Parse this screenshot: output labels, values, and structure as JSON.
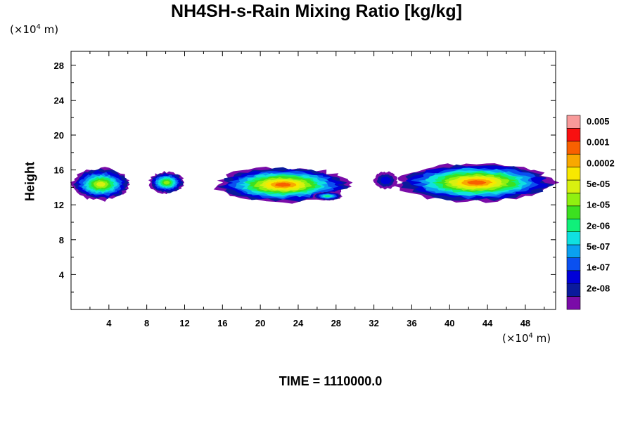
{
  "title": "NH4SH-s-Rain Mixing Ratio [kg/kg]",
  "y_unit": {
    "prefix": "(×10",
    "exp": "4",
    "suffix": " m)"
  },
  "x_unit": {
    "prefix": "(×10",
    "exp": "4",
    "suffix": " m)"
  },
  "time_label": "TIME = 1110000.0",
  "chart_data": {
    "type": "heatmap",
    "title": "NH4SH-s-Rain Mixing Ratio [kg/kg]",
    "xlabel": "",
    "ylabel": "Height",
    "xlim": [
      0,
      51.2
    ],
    "ylim": [
      0,
      29.6
    ],
    "xticks": [
      4,
      8,
      12,
      16,
      20,
      24,
      28,
      32,
      36,
      40,
      44,
      48
    ],
    "yticks": [
      4,
      8,
      12,
      16,
      20,
      24,
      28
    ],
    "levels": [
      "2e-08",
      "1e-07",
      "5e-07",
      "2e-06",
      "1e-05",
      "5e-05",
      "0.0002",
      "0.001",
      "0.005"
    ],
    "colorbar_colors": [
      "#7a0ca8",
      "#0a1a9c",
      "#0000d8",
      "#0a50f0",
      "#0aa0f0",
      "#10e0e0",
      "#10f07a",
      "#3ce020",
      "#90f010",
      "#d8f010",
      "#f8e800",
      "#f8a800",
      "#f86000",
      "#f81010",
      "#f89a9a"
    ],
    "regions": [
      {
        "x": [
          0,
          6.3
        ],
        "y": [
          12.5,
          16.2
        ],
        "peak": 9
      },
      {
        "x": [
          8.2,
          12.0
        ],
        "y": [
          13.3,
          15.8
        ],
        "peak": 8
      },
      {
        "x": [
          15.3,
          29.5
        ],
        "y": [
          12.3,
          16.3
        ],
        "peak": 12
      },
      {
        "x": [
          25.5,
          28.7
        ],
        "y": [
          12.5,
          13.5
        ],
        "peak": 6
      },
      {
        "x": [
          32.0,
          34.5
        ],
        "y": [
          13.8,
          15.8
        ],
        "peak": 2
      },
      {
        "x": [
          34.5,
          51.2
        ],
        "y": [
          12.3,
          16.8
        ],
        "peak": 12
      }
    ]
  }
}
